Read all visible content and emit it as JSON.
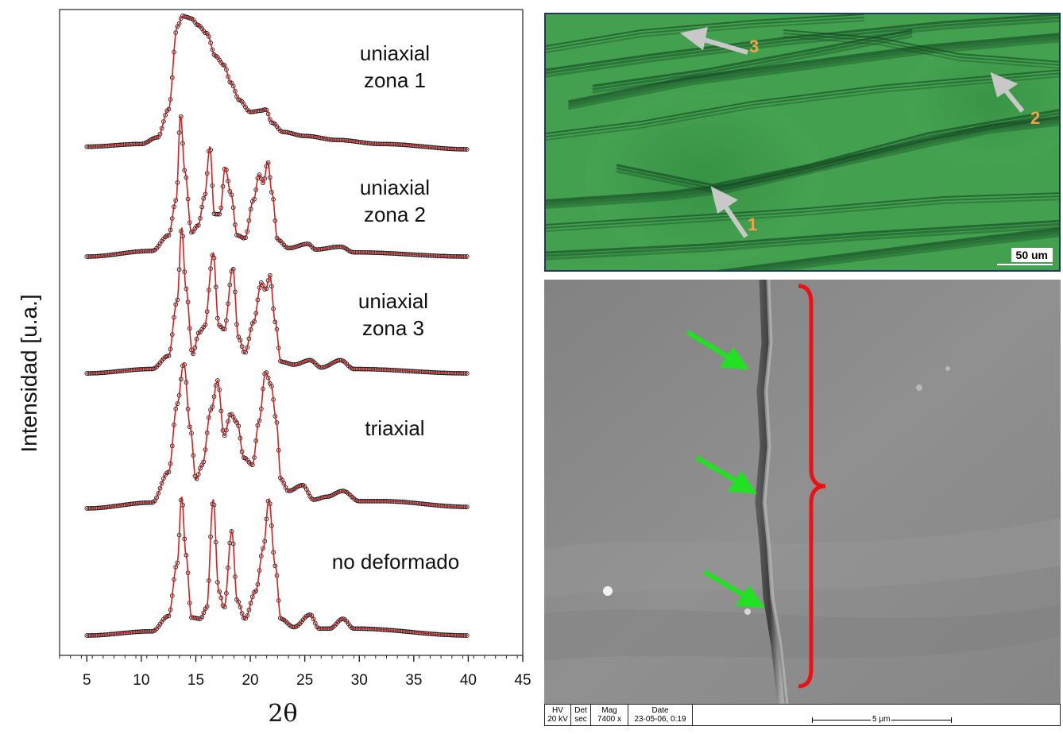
{
  "chart_data": {
    "type": "line",
    "xlabel": "2θ",
    "ylabel": "Intensidad [u.a.]",
    "xlim": [
      2.5,
      45
    ],
    "x_ticks": [
      "5",
      "10",
      "15",
      "20",
      "25",
      "30",
      "35",
      "40",
      "45"
    ],
    "x_range_data": [
      5,
      40
    ],
    "y_units": "arbitrary (offset stacked)",
    "series": [
      {
        "name": "uniaxial zona 1",
        "label_lines": [
          "uniaxial",
          "zona 1"
        ],
        "baseline": 0.0,
        "points": [
          [
            5,
            0.02
          ],
          [
            10,
            0.04
          ],
          [
            11.5,
            0.09
          ],
          [
            12.5,
            0.3
          ],
          [
            13.3,
            0.92
          ],
          [
            13.8,
            1.0
          ],
          [
            14.2,
            0.99
          ],
          [
            14.6,
            0.98
          ],
          [
            15.2,
            0.93
          ],
          [
            16,
            0.87
          ],
          [
            16.8,
            0.7
          ],
          [
            17.6,
            0.63
          ],
          [
            18.2,
            0.5
          ],
          [
            19,
            0.37
          ],
          [
            20,
            0.28
          ],
          [
            21,
            0.29
          ],
          [
            21.4,
            0.3
          ],
          [
            22,
            0.2
          ],
          [
            23,
            0.13
          ],
          [
            25,
            0.1
          ],
          [
            28,
            0.07
          ],
          [
            32,
            0.04
          ],
          [
            40,
            0.0
          ]
        ]
      },
      {
        "name": "uniaxial zona 2",
        "label_lines": [
          "uniaxial",
          "zona 2"
        ],
        "baseline": 0.0,
        "points": [
          [
            5,
            0.0
          ],
          [
            11,
            0.04
          ],
          [
            12.5,
            0.15
          ],
          [
            13.2,
            0.4
          ],
          [
            13.6,
            1.0
          ],
          [
            14.0,
            0.6
          ],
          [
            14.6,
            0.17
          ],
          [
            15.2,
            0.22
          ],
          [
            15.8,
            0.42
          ],
          [
            16.3,
            0.78
          ],
          [
            16.7,
            0.3
          ],
          [
            17.2,
            0.3
          ],
          [
            17.7,
            0.63
          ],
          [
            18.2,
            0.45
          ],
          [
            18.8,
            0.15
          ],
          [
            19.5,
            0.13
          ],
          [
            20.3,
            0.4
          ],
          [
            20.8,
            0.58
          ],
          [
            21.2,
            0.52
          ],
          [
            21.6,
            0.67
          ],
          [
            22.0,
            0.45
          ],
          [
            22.5,
            0.12
          ],
          [
            23.5,
            0.06
          ],
          [
            25.3,
            0.09
          ],
          [
            26,
            0.05
          ],
          [
            28.3,
            0.07
          ],
          [
            29.5,
            0.03
          ],
          [
            40,
            0.0
          ]
        ]
      },
      {
        "name": "uniaxial zona 3",
        "label_lines": [
          "uniaxial",
          "zona 3"
        ],
        "baseline": 0.0,
        "points": [
          [
            5,
            0.0
          ],
          [
            11,
            0.03
          ],
          [
            12.5,
            0.12
          ],
          [
            13.3,
            0.5
          ],
          [
            13.7,
            1.0
          ],
          [
            14.1,
            0.58
          ],
          [
            14.7,
            0.13
          ],
          [
            15.3,
            0.28
          ],
          [
            15.8,
            0.32
          ],
          [
            16.6,
            0.82
          ],
          [
            17.1,
            0.33
          ],
          [
            17.6,
            0.3
          ],
          [
            18.4,
            0.72
          ],
          [
            18.9,
            0.25
          ],
          [
            19.5,
            0.14
          ],
          [
            20.3,
            0.35
          ],
          [
            21.0,
            0.62
          ],
          [
            21.4,
            0.57
          ],
          [
            21.8,
            0.67
          ],
          [
            22.3,
            0.35
          ],
          [
            22.8,
            0.08
          ],
          [
            24,
            0.06
          ],
          [
            25.5,
            0.09
          ],
          [
            26.5,
            0.04
          ],
          [
            28.3,
            0.09
          ],
          [
            29.5,
            0.03
          ],
          [
            40,
            0.0
          ]
        ]
      },
      {
        "name": "triaxial",
        "label_lines": [
          "triaxial"
        ],
        "baseline": 0.0,
        "points": [
          [
            5,
            0.0
          ],
          [
            11,
            0.04
          ],
          [
            12.5,
            0.25
          ],
          [
            13.3,
            0.72
          ],
          [
            13.9,
            1.0
          ],
          [
            14.5,
            0.55
          ],
          [
            15.0,
            0.2
          ],
          [
            15.6,
            0.3
          ],
          [
            16.4,
            0.68
          ],
          [
            17.0,
            0.88
          ],
          [
            17.6,
            0.5
          ],
          [
            18.2,
            0.65
          ],
          [
            18.8,
            0.59
          ],
          [
            19.4,
            0.35
          ],
          [
            20.2,
            0.3
          ],
          [
            20.8,
            0.6
          ],
          [
            21.4,
            0.94
          ],
          [
            21.9,
            0.85
          ],
          [
            22.4,
            0.6
          ],
          [
            22.8,
            0.2
          ],
          [
            23.5,
            0.12
          ],
          [
            24.8,
            0.16
          ],
          [
            25.8,
            0.06
          ],
          [
            27,
            0.08
          ],
          [
            28.5,
            0.12
          ],
          [
            30,
            0.05
          ],
          [
            32,
            0.05
          ],
          [
            40,
            0.01
          ]
        ]
      },
      {
        "name": "no deformado",
        "label_lines": [
          "no deformado"
        ],
        "baseline": 0.0,
        "points": [
          [
            5,
            0.0
          ],
          [
            11,
            0.03
          ],
          [
            12.5,
            0.14
          ],
          [
            13.3,
            0.52
          ],
          [
            13.7,
            1.0
          ],
          [
            14.1,
            0.58
          ],
          [
            14.6,
            0.13
          ],
          [
            15.4,
            0.12
          ],
          [
            16.0,
            0.2
          ],
          [
            16.6,
            0.98
          ],
          [
            17.1,
            0.32
          ],
          [
            17.6,
            0.2
          ],
          [
            18.3,
            0.75
          ],
          [
            18.8,
            0.25
          ],
          [
            19.5,
            0.12
          ],
          [
            20.5,
            0.32
          ],
          [
            21.2,
            0.63
          ],
          [
            21.7,
            0.98
          ],
          [
            22.3,
            0.5
          ],
          [
            22.8,
            0.12
          ],
          [
            24,
            0.06
          ],
          [
            25.5,
            0.15
          ],
          [
            26.3,
            0.05
          ],
          [
            27.3,
            0.05
          ],
          [
            28.5,
            0.12
          ],
          [
            29.5,
            0.05
          ],
          [
            40,
            0.0
          ]
        ]
      }
    ]
  },
  "colors": {
    "fit_line": "#d42020",
    "data_markers": "#1a1a1a",
    "micro_background": "#3f9b4a",
    "micro_dark_fibers": "#0e3a1e",
    "arrow_gray": "#c8c8c8",
    "number_orange": "#f3a247",
    "sem_gray": "#8c8c8c",
    "green_arrow": "#22e022",
    "red_brace": "#ee1111"
  },
  "micrograph": {
    "numbers": [
      "1",
      "2",
      "3"
    ],
    "scale_bar": "50 um"
  },
  "sem": {
    "footer": {
      "hv_label": "HV",
      "hv_value": "20 kV",
      "det_label": "Det",
      "det_value": "sec",
      "mag_label": "Mag",
      "mag_value": "7400 x",
      "date_label": "Date",
      "date_value": "23-05-06, 0:19",
      "scale_text": "5 μm"
    }
  }
}
